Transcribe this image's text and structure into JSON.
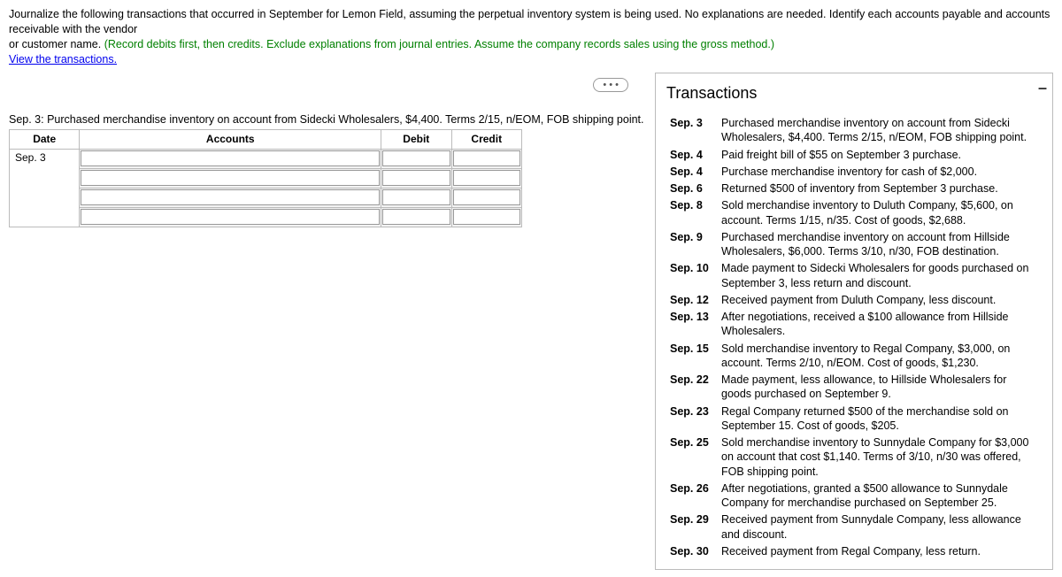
{
  "instructions": {
    "line1_a": "Journalize the following transactions that occurred in September for Lemon Field, assuming the perpetual inventory system is being used. No explanations are needed. Identify each accounts payable and accounts receivable with the vendor",
    "line2_a": "or customer name. ",
    "line2_green": "(Record debits first, then credits. Exclude explanations from journal entries. Assume the company records sales using the gross method.)",
    "link": "View the transactions."
  },
  "left": {
    "ellipsis": "• • •",
    "current_entry": "Sep. 3: Purchased merchandise inventory on account from Sidecki Wholesalers, $4,400. Terms 2/15, n/EOM, FOB shipping point.",
    "headers": {
      "date": "Date",
      "accounts": "Accounts",
      "debit": "Debit",
      "credit": "Credit"
    },
    "date_value": "Sep. 3"
  },
  "right": {
    "title": "Transactions",
    "rows": [
      {
        "date": "Sep. 3",
        "text": "Purchased merchandise inventory on account from Sidecki Wholesalers, $4,400. Terms 2/15, n/EOM, FOB shipping point."
      },
      {
        "date": "Sep. 4",
        "text": "Paid freight bill of $55 on September 3 purchase."
      },
      {
        "date": "Sep. 4",
        "text": "Purchase merchandise inventory for cash of $2,000."
      },
      {
        "date": "Sep. 6",
        "text": "Returned $500 of inventory from September 3 purchase."
      },
      {
        "date": "Sep. 8",
        "text": "Sold merchandise inventory to Duluth Company, $5,600, on account. Terms 1/15, n/35. Cost of goods, $2,688."
      },
      {
        "date": "Sep. 9",
        "text": "Purchased merchandise inventory on account from Hillside Wholesalers, $6,000. Terms 3/10, n/30, FOB destination."
      },
      {
        "date": "Sep. 10",
        "text": "Made payment to Sidecki Wholesalers for goods purchased on September 3, less return and discount."
      },
      {
        "date": "Sep. 12",
        "text": "Received payment from Duluth Company, less discount."
      },
      {
        "date": "Sep. 13",
        "text": "After negotiations, received a $100 allowance from Hillside Wholesalers."
      },
      {
        "date": "Sep. 15",
        "text": "Sold merchandise inventory to Regal Company, $3,000, on account. Terms 2/10, n/EOM. Cost of goods, $1,230."
      },
      {
        "date": "Sep. 22",
        "text": "Made payment, less allowance, to Hillside Wholesalers for goods purchased on September 9."
      },
      {
        "date": "Sep. 23",
        "text": "Regal Company returned $500 of the merchandise sold on September 15. Cost of goods, $205."
      },
      {
        "date": "Sep. 25",
        "text": "Sold merchandise inventory to Sunnydale Company for $3,000 on account that cost $1,140. Terms of 3/10, n/30 was offered, FOB shipping point."
      },
      {
        "date": "Sep. 26",
        "text": "After negotiations, granted a $500 allowance to Sunnydale Company for merchandise purchased on September 25."
      },
      {
        "date": "Sep. 29",
        "text": "Received payment from Sunnydale Company, less allowance and discount."
      },
      {
        "date": "Sep. 30",
        "text": "Received payment from Regal Company, less return."
      }
    ]
  }
}
